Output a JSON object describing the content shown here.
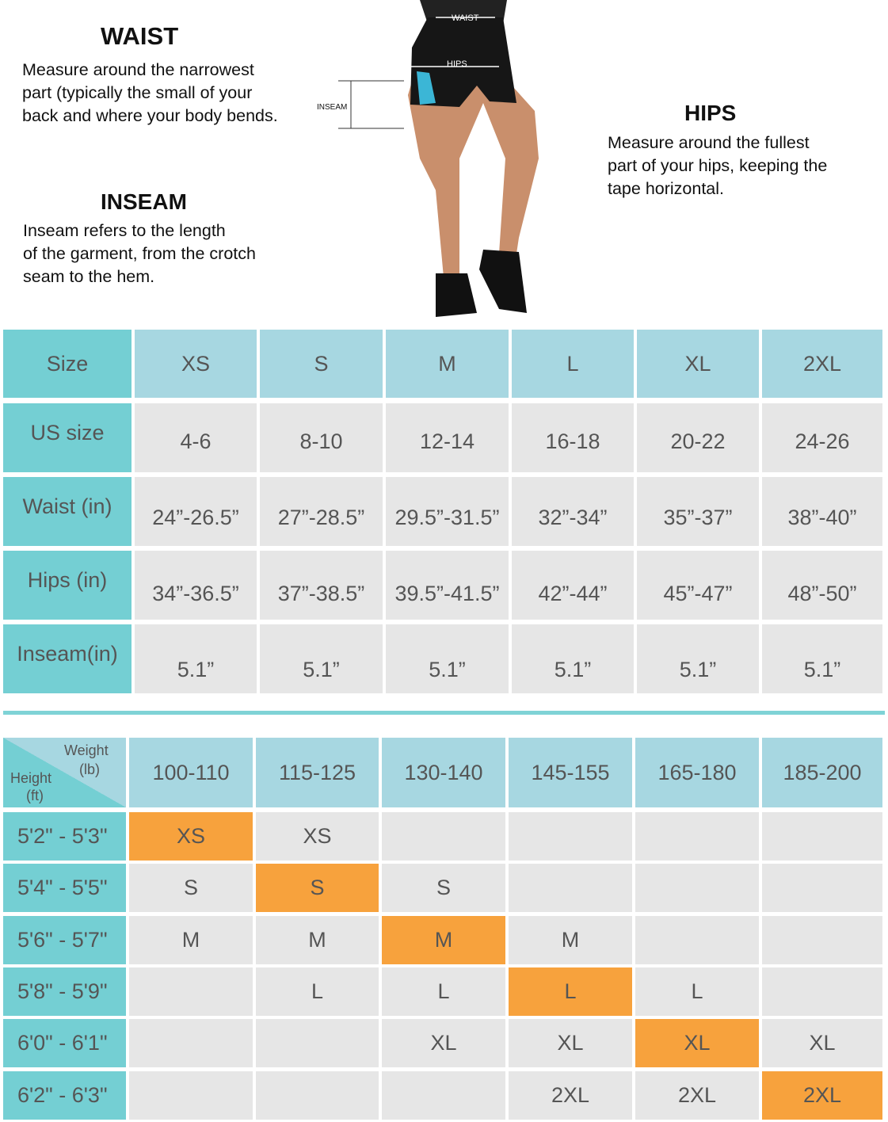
{
  "waist": {
    "title": "WAIST",
    "lines": [
      "Measure around the narrowest",
      "part (typically the small of your",
      "back and where your body bends."
    ]
  },
  "inseam": {
    "title": "INSEAM",
    "lines": [
      "Inseam refers to the length",
      "of the garment, from the crotch",
      "seam to the hem."
    ]
  },
  "hips": {
    "title": "HIPS",
    "lines": [
      "Measure around the fullest",
      "part of your hips, keeping the",
      "tape horizontal."
    ]
  },
  "figure_labels": {
    "waist": "WAIST",
    "hips": "HIPS",
    "inseam": "INSEAM"
  },
  "size_table": {
    "header": [
      "Size",
      "XS",
      "S",
      "M",
      "L",
      "XL",
      "2XL"
    ],
    "rows": [
      [
        "US size",
        "4-6",
        "8-10",
        "12-14",
        "16-18",
        "20-22",
        "24-26"
      ],
      [
        "Waist (in)",
        "24”-26.5”",
        "27”-28.5”",
        "29.5”-31.5”",
        "32”-34”",
        "35”-37”",
        "38”-40”"
      ],
      [
        "Hips (in)",
        "34”-36.5”",
        "37”-38.5”",
        "39.5”-41.5”",
        "42”-44”",
        "45”-47”",
        "48”-50”"
      ],
      [
        "Inseam(in)",
        "5.1”",
        "5.1”",
        "5.1”",
        "5.1”",
        "5.1”",
        "5.1”"
      ]
    ]
  },
  "weight_table": {
    "corner": {
      "weight": "Weight",
      "weight_unit": "(lb)",
      "height": "Height",
      "height_unit": "(ft)"
    },
    "columns": [
      "100-110",
      "115-125",
      "130-140",
      "145-155",
      "165-180",
      "185-200"
    ],
    "rows": [
      {
        "height": "5'2\" - 5'3\"",
        "cells": [
          "XS",
          "XS",
          null,
          null,
          null,
          null
        ],
        "highlight": 0
      },
      {
        "height": "5'4\" - 5'5\"",
        "cells": [
          "S",
          "S",
          "S",
          null,
          null,
          null
        ],
        "highlight": 1
      },
      {
        "height": "5'6\" - 5'7\"",
        "cells": [
          "M",
          "M",
          "M",
          "M",
          null,
          null
        ],
        "highlight": 2
      },
      {
        "height": "5'8\" - 5'9\"",
        "cells": [
          null,
          "L",
          "L",
          "L",
          "L",
          null
        ],
        "highlight": 3
      },
      {
        "height": "6'0\" - 6'1\"",
        "cells": [
          null,
          null,
          "XL",
          "XL",
          "XL",
          "XL"
        ],
        "highlight": 4
      },
      {
        "height": "6'2\" - 6'3\"",
        "cells": [
          null,
          null,
          null,
          "2XL",
          "2XL",
          "2XL"
        ],
        "highlight": 5
      }
    ]
  }
}
